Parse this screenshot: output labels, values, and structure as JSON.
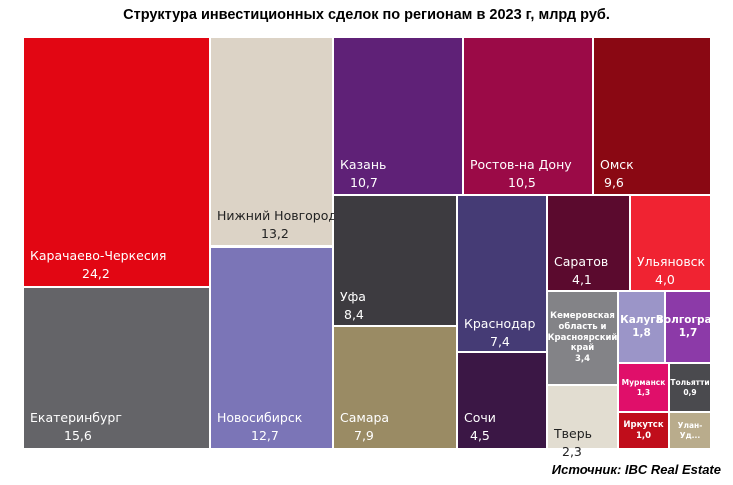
{
  "chart_data": {
    "type": "treemap",
    "title": "Структура инвестиционных сделок по регионам в 2023 г, млрд руб.",
    "source": "Источник: IBC Real Estate",
    "unit": "млрд руб.",
    "items": [
      {
        "name": "Карачаево-Черкесия",
        "value": 24.2,
        "label": "24,2",
        "color": "#e20613"
      },
      {
        "name": "Екатеринбург",
        "value": 15.6,
        "label": "15,6",
        "color": "#646468"
      },
      {
        "name": "Нижний Новгород",
        "value": 13.2,
        "label": "13,2",
        "color": "#dcd3c6"
      },
      {
        "name": "Новосибирск",
        "value": 12.7,
        "label": "12,7",
        "color": "#7b75b7"
      },
      {
        "name": "Казань",
        "value": 10.7,
        "label": "10,7",
        "color": "#5f2177"
      },
      {
        "name": "Ростов-на Дону",
        "value": 10.5,
        "label": "10,5",
        "color": "#9b0a47"
      },
      {
        "name": "Омск",
        "value": 9.6,
        "label": "9,6",
        "color": "#8a0813"
      },
      {
        "name": "Уфа",
        "value": 8.4,
        "label": "8,4",
        "color": "#3d3b40"
      },
      {
        "name": "Самара",
        "value": 7.9,
        "label": "7,9",
        "color": "#9a8b64"
      },
      {
        "name": "Краснодар",
        "value": 7.4,
        "label": "7,4",
        "color": "#453b75"
      },
      {
        "name": "Сочи",
        "value": 4.5,
        "label": "4,5",
        "color": "#3b1745"
      },
      {
        "name": "Саратов",
        "value": 4.1,
        "label": "4,1",
        "color": "#5b0a2e"
      },
      {
        "name": "Ульяновск",
        "value": 4.0,
        "label": "4,0",
        "color": "#f02332"
      },
      {
        "name": "Кемеровская область и Красноярский край",
        "value": 3.4,
        "label": "3,4",
        "color": "#838387"
      },
      {
        "name": "Тверь",
        "value": 2.3,
        "label": "2,3",
        "color": "#e2ddd1"
      },
      {
        "name": "Калуга",
        "value": 1.8,
        "label": "1,8",
        "color": "#9b95c8"
      },
      {
        "name": "Волгоград",
        "value": 1.7,
        "label": "1,7",
        "color": "#8c3aa8"
      },
      {
        "name": "Мурманск",
        "value": 1.3,
        "label": "1,3",
        "color": "#e00f6a"
      },
      {
        "name": "Тольятти",
        "value": 0.9,
        "label": "0,9",
        "color": "#4a4a4e"
      },
      {
        "name": "Иркутск",
        "value": 1.0,
        "label": "1,0",
        "color": "#c00d1b"
      },
      {
        "name": "Улан-Уд...",
        "value": null,
        "label": "",
        "color": "#b9ac8c"
      }
    ]
  }
}
